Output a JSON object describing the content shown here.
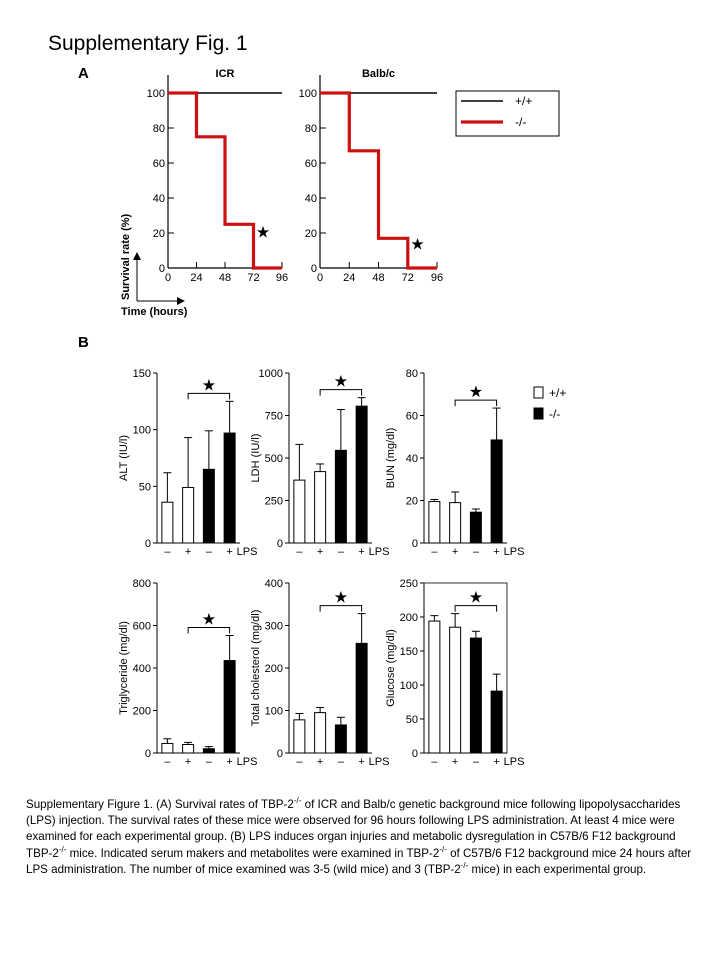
{
  "page": {
    "title": "Supplementary Fig. 1"
  },
  "panelA": {
    "label": "A",
    "ylabel": "Survival rate (%)",
    "xlabel": "Time (hours)",
    "legend": [
      {
        "name": "+/+",
        "color": "#000000"
      },
      {
        "name": "-/-",
        "color": "#cc1111"
      }
    ]
  },
  "panelB": {
    "label": "B",
    "legend": [
      {
        "name": "+/+",
        "fill": "#ffffff"
      },
      {
        "name": "-/-",
        "fill": "#000000"
      }
    ],
    "xticks": [
      "–",
      "+",
      "–",
      "+"
    ],
    "lps_label": "LPS",
    "star": "★"
  },
  "chart_data": [
    {
      "type": "line",
      "title": "ICR",
      "xticks": [
        "0",
        "24",
        "48",
        "72",
        "96"
      ],
      "yticks": [
        "0",
        "20",
        "40",
        "60",
        "80",
        "100"
      ],
      "xlim": [
        0,
        96
      ],
      "ylim": [
        0,
        100
      ],
      "series": [
        {
          "name": "+/+",
          "color": "#000000",
          "points": [
            [
              0,
              100
            ],
            [
              96,
              100
            ]
          ]
        },
        {
          "name": "-/-",
          "color": "#cc1111",
          "points": [
            [
              0,
              100
            ],
            [
              24,
              100
            ],
            [
              24,
              75
            ],
            [
              48,
              75
            ],
            [
              48,
              25
            ],
            [
              72,
              25
            ],
            [
              72,
              0
            ],
            [
              96,
              0
            ]
          ]
        }
      ],
      "annotation": {
        "text": "★",
        "x": 80,
        "y": 21
      }
    },
    {
      "type": "line",
      "title": "Balb/c",
      "xticks": [
        "0",
        "24",
        "48",
        "72",
        "96"
      ],
      "yticks": [
        "0",
        "20",
        "40",
        "60",
        "80",
        "100"
      ],
      "xlim": [
        0,
        96
      ],
      "ylim": [
        0,
        100
      ],
      "series": [
        {
          "name": "+/+",
          "color": "#000000",
          "points": [
            [
              0,
              100
            ],
            [
              96,
              100
            ]
          ]
        },
        {
          "name": "-/-",
          "color": "#cc1111",
          "points": [
            [
              0,
              100
            ],
            [
              24,
              100
            ],
            [
              24,
              67
            ],
            [
              48,
              67
            ],
            [
              48,
              17
            ],
            [
              72,
              17
            ],
            [
              72,
              0
            ],
            [
              96,
              0
            ]
          ]
        }
      ],
      "annotation": {
        "text": "★",
        "x": 80,
        "y": 14
      }
    },
    {
      "type": "bar",
      "ylabel": "ALT (IU/l)",
      "yticks": [
        "0",
        "50",
        "100",
        "150"
      ],
      "ylim": [
        0,
        150
      ],
      "values": [
        36,
        49,
        65,
        97
      ],
      "errors": [
        26,
        44,
        34,
        28
      ]
    },
    {
      "type": "bar",
      "ylabel": "LDH (IU/l)",
      "yticks": [
        "0",
        "250",
        "500",
        "750",
        "1000"
      ],
      "ylim": [
        0,
        1000
      ],
      "values": [
        370,
        420,
        545,
        805
      ],
      "errors": [
        210,
        45,
        240,
        50
      ]
    },
    {
      "type": "bar",
      "ylabel": "BUN (mg/dl)",
      "yticks": [
        "0",
        "20",
        "40",
        "60",
        "80"
      ],
      "ylim": [
        0,
        80
      ],
      "values": [
        19.5,
        19,
        14.5,
        48.5
      ],
      "errors": [
        1,
        5,
        1.5,
        15
      ]
    },
    {
      "type": "bar",
      "ylabel": "Triglyceride (mg/dl)",
      "yticks": [
        "0",
        "200",
        "400",
        "600",
        "800"
      ],
      "ylim": [
        0,
        800
      ],
      "values": [
        45,
        40,
        20,
        435
      ],
      "errors": [
        22,
        10,
        10,
        118
      ]
    },
    {
      "type": "bar",
      "ylabel": "Total cholesterol (mg/dl)",
      "yticks": [
        "0",
        "100",
        "200",
        "300",
        "400"
      ],
      "ylim": [
        0,
        400
      ],
      "values": [
        78,
        95,
        66,
        258
      ],
      "errors": [
        15,
        12,
        18,
        70
      ]
    },
    {
      "type": "bar",
      "ylabel": "Glucose (mg/dl)",
      "yticks": [
        "0",
        "50",
        "100",
        "150",
        "200",
        "250"
      ],
      "ylim": [
        0,
        250
      ],
      "values": [
        194,
        185,
        169,
        91
      ],
      "errors": [
        8,
        20,
        10,
        25
      ]
    }
  ]
}
